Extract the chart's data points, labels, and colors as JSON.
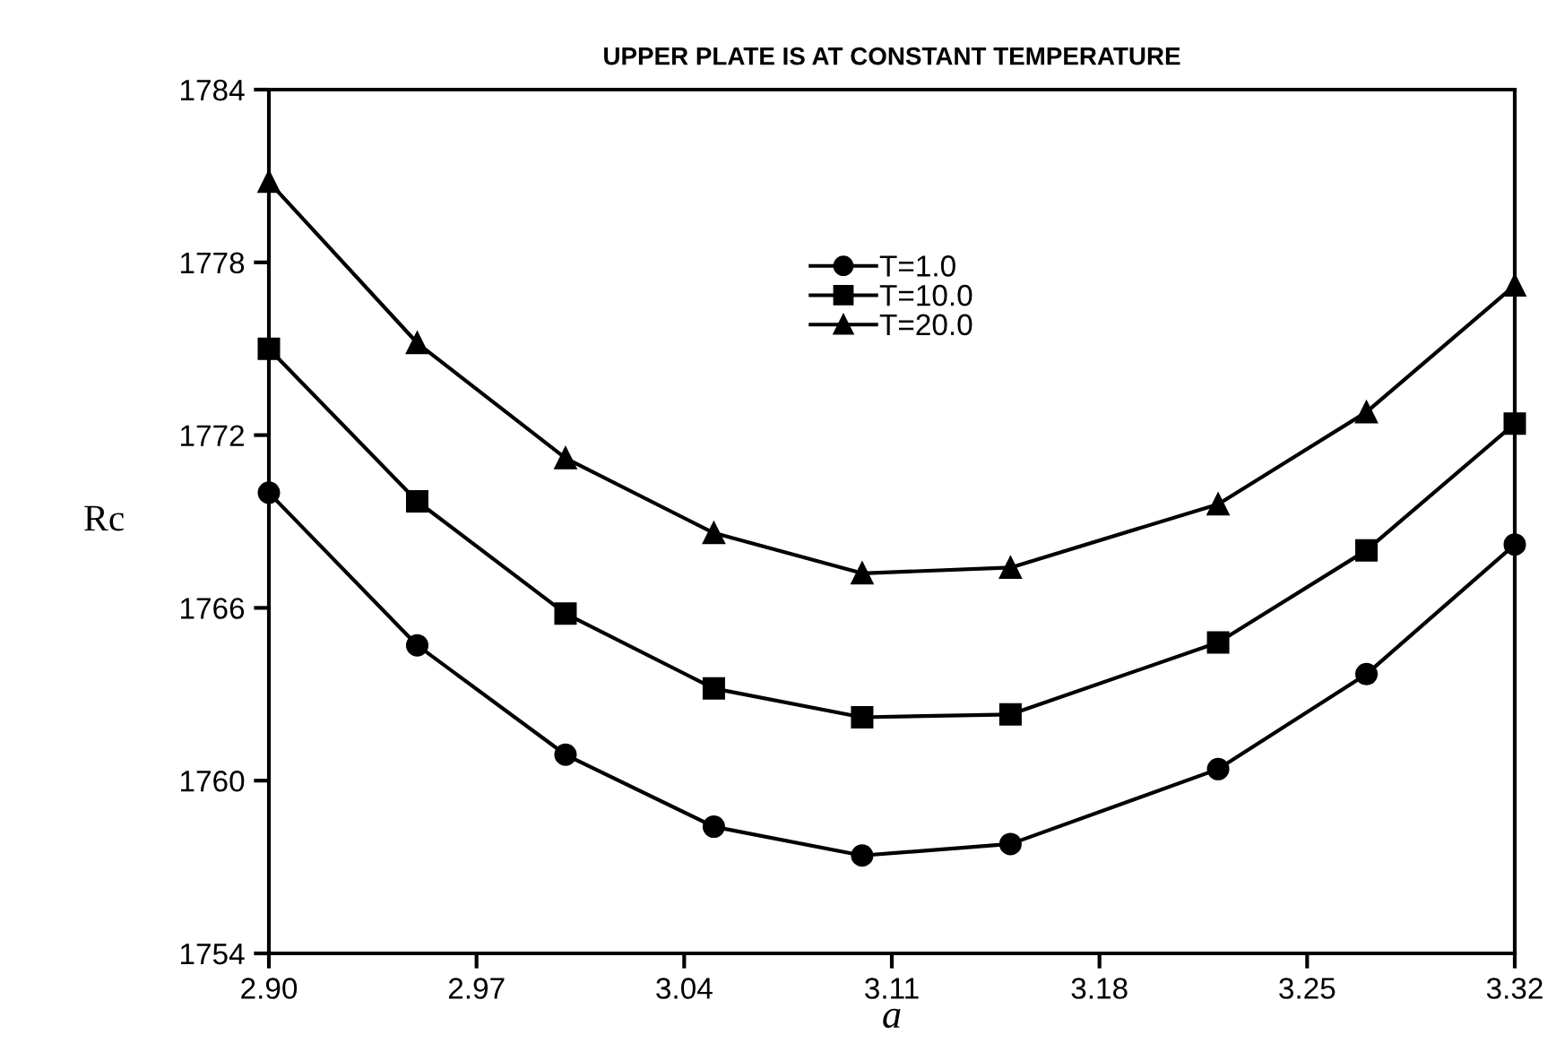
{
  "chart_data": {
    "type": "line",
    "title": "UPPER PLATE IS AT CONSTANT TEMPERATURE",
    "xlabel": "a",
    "ylabel": "Rc",
    "x": [
      2.9,
      2.95,
      3.0,
      3.05,
      3.1,
      3.15,
      3.22,
      3.27,
      3.32
    ],
    "series": [
      {
        "name": "T=1.0",
        "color": "#000000",
        "marker": "circle",
        "values": [
          1770.0,
          1764.7,
          1760.9,
          1758.4,
          1757.4,
          1757.8,
          1760.4,
          1763.7,
          1768.2
        ]
      },
      {
        "name": "T=10.0",
        "color": "#000000",
        "marker": "square",
        "values": [
          1775.0,
          1769.7,
          1765.8,
          1763.2,
          1762.2,
          1762.3,
          1764.8,
          1768.0,
          1772.4
        ]
      },
      {
        "name": "T=20.0",
        "color": "#000000",
        "marker": "triangle",
        "values": [
          1780.8,
          1775.2,
          1771.2,
          1768.6,
          1767.2,
          1767.4,
          1769.6,
          1772.8,
          1777.2
        ]
      }
    ],
    "xlim": [
      2.9,
      3.32
    ],
    "xticks": [
      {
        "value": 2.9,
        "label": "2.90"
      },
      2.97,
      3.04,
      3.11,
      3.18,
      3.25,
      {
        "value": 3.32,
        "label": "3.32"
      }
    ],
    "ylim": [
      1754,
      1784
    ],
    "yticks": [
      1754,
      1760,
      1766,
      1772,
      1778,
      1784
    ],
    "grid": false,
    "legend": "top",
    "line_style": "solid"
  }
}
